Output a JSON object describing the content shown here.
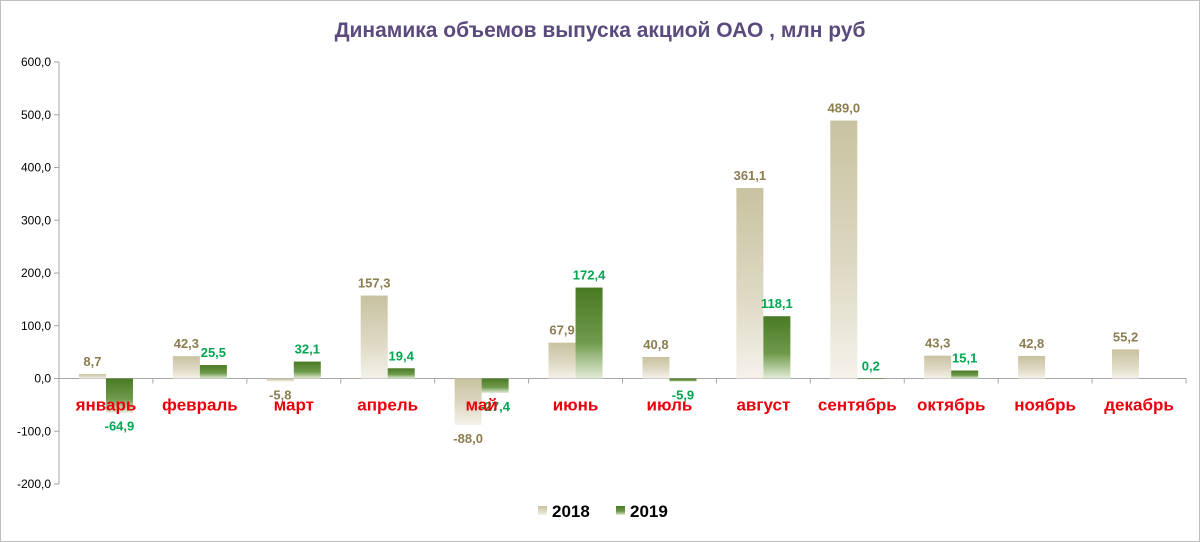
{
  "chart_data": {
    "type": "bar",
    "title": "Динамика объемов выпуска акциой ОАО , млн руб",
    "categories": [
      "январь",
      "февраль",
      "март",
      "апрель",
      "май",
      "июнь",
      "июль",
      "август",
      "сентябрь",
      "октябрь",
      "ноябрь",
      "декабрь"
    ],
    "series": [
      {
        "name": "2018",
        "values": [
          8.7,
          42.3,
          -5.8,
          157.3,
          -88.0,
          67.9,
          40.8,
          361.1,
          489.0,
          43.3,
          42.8,
          55.2
        ],
        "labels": [
          "8,7",
          "42,3",
          "-5,8",
          "157,3",
          "-88,0",
          "67,9",
          "40,8",
          "361,1",
          "489,0",
          "43,3",
          "42,8",
          "55,2"
        ],
        "color": "#c9c3a0"
      },
      {
        "name": "2019",
        "values": [
          -64.9,
          25.5,
          32.1,
          19.4,
          -27.4,
          172.4,
          -5.9,
          118.1,
          0.2,
          15.1,
          null,
          null
        ],
        "labels": [
          "-64,9",
          "25,5",
          "32,1",
          "19,4",
          "-27,4",
          "172,4",
          "-5,9",
          "118,1",
          "0,2",
          "15,1",
          "",
          ""
        ],
        "color": "#4f7a2c"
      }
    ],
    "yticks": [
      600,
      500,
      400,
      300,
      200,
      100,
      0,
      -100,
      -200
    ],
    "ytick_labels": [
      "600,0",
      "500,0",
      "400,0",
      "300,0",
      "200,0",
      "100,0",
      "0,0",
      "-100,0",
      "-200,0"
    ],
    "ylim": [
      -200,
      600
    ],
    "grid": false,
    "legend": "bottom-center"
  }
}
